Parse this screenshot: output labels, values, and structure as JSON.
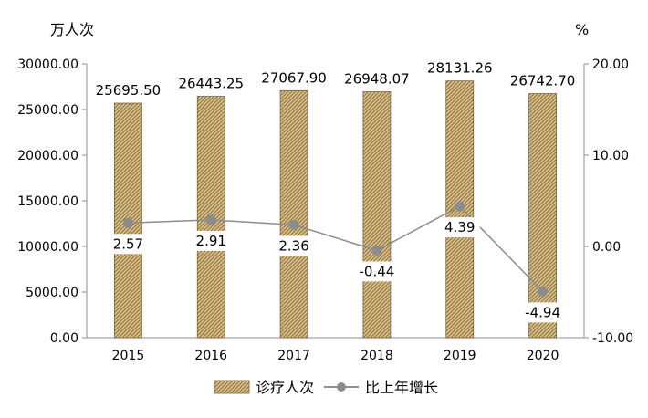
{
  "chart_data": {
    "type": "bar+line",
    "left_unit": "万人次",
    "right_unit": "%",
    "categories": [
      "2015",
      "2016",
      "2017",
      "2018",
      "2019",
      "2020"
    ],
    "series": [
      {
        "name": "诊疗人次",
        "type": "bar",
        "axis": "left",
        "values": [
          25695.5,
          26443.25,
          27067.9,
          26948.07,
          28131.26,
          26742.7
        ],
        "labels": [
          "25695.50",
          "26443.25",
          "27067.90",
          "26948.07",
          "28131.26",
          "26742.70"
        ],
        "color": "#C8A96A"
      },
      {
        "name": "比上年增长",
        "type": "line",
        "axis": "right",
        "values": [
          2.57,
          2.91,
          2.36,
          -0.44,
          4.39,
          -4.94
        ],
        "labels": [
          "2.57",
          "2.91",
          "2.36",
          "-0.44",
          "4.39",
          "-4.94"
        ],
        "color": "#8C8C8C"
      }
    ],
    "left_axis": {
      "min": 0,
      "max": 30000,
      "step": 5000,
      "ticks": [
        "0.00",
        "5000.00",
        "10000.00",
        "15000.00",
        "20000.00",
        "25000.00",
        "30000.00"
      ]
    },
    "right_axis": {
      "min": -10,
      "max": 20,
      "step": 10,
      "ticks": [
        "-10.00",
        "0.00",
        "10.00",
        "20.00"
      ]
    },
    "grid": false,
    "legend_position": "bottom-center"
  }
}
